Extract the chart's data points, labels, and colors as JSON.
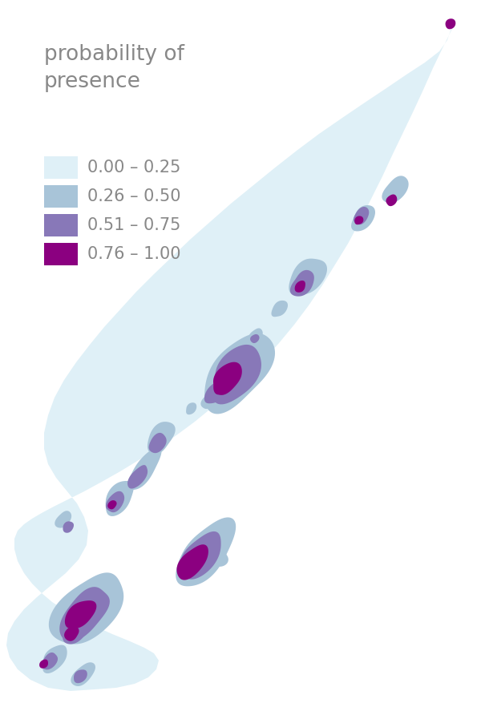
{
  "title": "probability of\npresence",
  "legend_labels": [
    "0.00 – 0.25",
    "0.26 – 0.50",
    "0.51 – 0.75",
    "0.76 – 1.00"
  ],
  "legend_colors": [
    "#dff0f7",
    "#a8c4d8",
    "#8878b8",
    "#8b0080"
  ],
  "background_color": "#ffffff",
  "text_color": "#888888",
  "title_fontsize": 19,
  "label_fontsize": 15,
  "map_color_1": "#dff0f7",
  "map_color_2": "#a8c4d8",
  "map_color_3": "#8878b8",
  "map_color_4": "#8b0080"
}
